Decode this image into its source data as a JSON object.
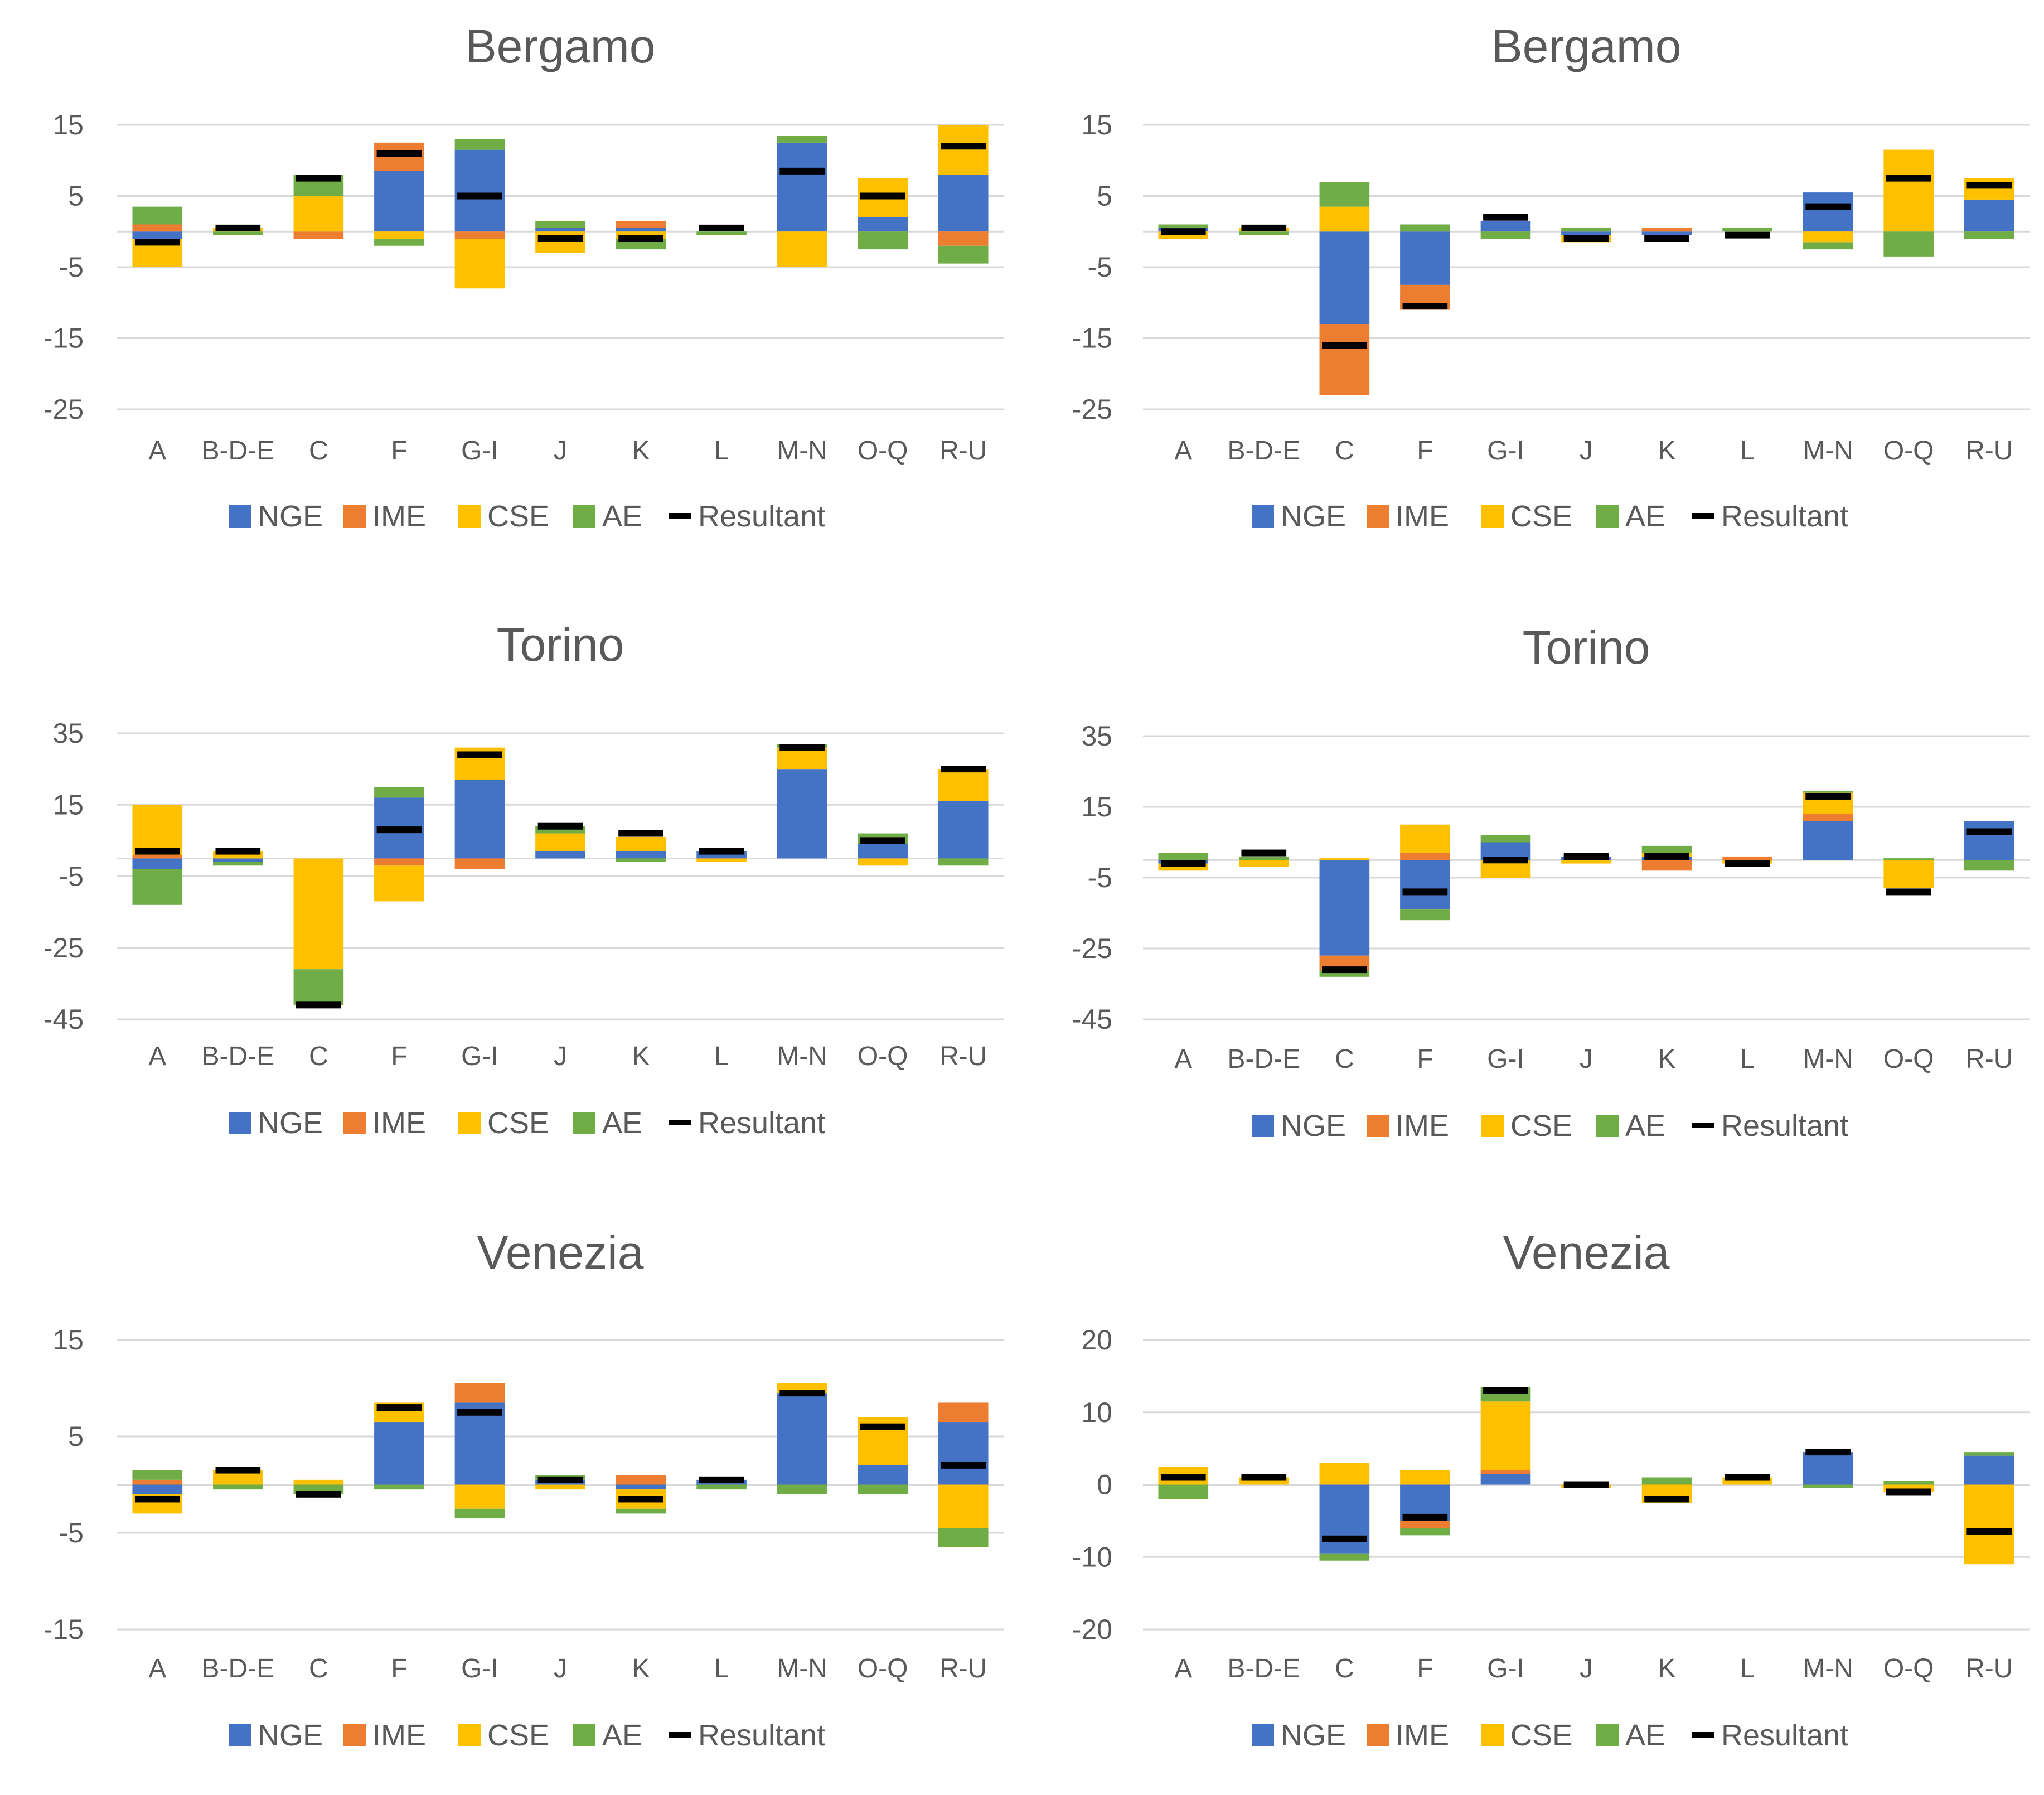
{
  "legend_keys": [
    "NGE",
    "IME",
    "CSE",
    "AE"
  ],
  "resultant_label": "Resultant",
  "colors": {
    "NGE": "#4472C4",
    "IME": "#ED7D31",
    "CSE": "#FFC000",
    "AE": "#70AD47",
    "Resultant": "#000000",
    "grid": "#D9D9D9",
    "text": "#595959"
  },
  "chart_data": [
    {
      "id": "bergamo-left",
      "type": "bar",
      "stacked": true,
      "title": "Bergamo",
      "ylim": [
        -25,
        15
      ],
      "yticks": [
        15,
        5,
        -5,
        -15,
        -25
      ],
      "grid": true,
      "legend": "bottom",
      "categories": [
        "A",
        "B-D-E",
        "C",
        "F",
        "G-I",
        "J",
        "K",
        "L",
        "M-N",
        "O-Q",
        "R-U"
      ],
      "series": [
        {
          "name": "NGE",
          "values": [
            -1,
            0,
            0,
            8.5,
            11.5,
            0.5,
            0.5,
            0,
            12.5,
            2,
            8
          ]
        },
        {
          "name": "IME",
          "values": [
            1,
            0,
            -1,
            4,
            -1,
            0,
            1,
            0,
            0,
            0,
            -2
          ]
        },
        {
          "name": "CSE",
          "values": [
            -4,
            0.5,
            5,
            -1,
            -7,
            -3,
            -1,
            0,
            -5,
            5.5,
            7
          ]
        },
        {
          "name": "AE",
          "values": [
            2.5,
            -0.5,
            3,
            -1,
            1.5,
            1,
            -1.5,
            -0.5,
            1,
            -2.5,
            -2.5
          ]
        }
      ],
      "resultant": [
        -1.5,
        0.5,
        7.5,
        11,
        5,
        -1,
        -1,
        0.5,
        8.5,
        5,
        12
      ]
    },
    {
      "id": "bergamo-right",
      "type": "bar",
      "stacked": true,
      "title": "Bergamo",
      "ylim": [
        -25,
        15
      ],
      "yticks": [
        15,
        5,
        -5,
        -15,
        -25
      ],
      "grid": true,
      "legend": "bottom",
      "categories": [
        "A",
        "B-D-E",
        "C",
        "F",
        "G-I",
        "J",
        "K",
        "L",
        "M-N",
        "O-Q",
        "R-U"
      ],
      "series": [
        {
          "name": "NGE",
          "values": [
            0.5,
            0,
            -13,
            -7.5,
            1.5,
            -0.5,
            -0.5,
            0,
            5.5,
            0,
            4.5
          ]
        },
        {
          "name": "IME",
          "values": [
            0,
            0,
            -10,
            -3.5,
            0,
            0,
            0.5,
            0,
            0,
            0,
            0
          ]
        },
        {
          "name": "CSE",
          "values": [
            -1,
            0.5,
            3.5,
            0,
            0,
            -1,
            0,
            0,
            -1.5,
            11.5,
            3
          ]
        },
        {
          "name": "AE",
          "values": [
            0.5,
            -0.5,
            3.5,
            1,
            -1,
            0.5,
            0,
            0.5,
            -1,
            -3.5,
            -1
          ]
        }
      ],
      "resultant": [
        0,
        0.5,
        -16,
        -10.5,
        2,
        -1,
        -1,
        -0.5,
        3.5,
        7.5,
        6.5
      ]
    },
    {
      "id": "torino-left",
      "type": "bar",
      "stacked": true,
      "title": "Torino",
      "ylim": [
        -45,
        35
      ],
      "yticks": [
        35,
        15,
        -5,
        -25,
        -45
      ],
      "grid": true,
      "legend": "bottom",
      "categories": [
        "A",
        "B-D-E",
        "C",
        "F",
        "G-I",
        "J",
        "K",
        "L",
        "M-N",
        "O-Q",
        "R-U"
      ],
      "series": [
        {
          "name": "NGE",
          "values": [
            -3,
            -1,
            0,
            17,
            22,
            2,
            2,
            2,
            25,
            4,
            16
          ]
        },
        {
          "name": "IME",
          "values": [
            1,
            0,
            0,
            -2,
            -3,
            0,
            0,
            0,
            0,
            0,
            0
          ]
        },
        {
          "name": "CSE",
          "values": [
            14,
            2,
            -31,
            -10,
            9,
            5,
            4,
            -1,
            6,
            -2,
            9
          ]
        },
        {
          "name": "AE",
          "values": [
            -10,
            -1,
            -10,
            3,
            0,
            2,
            -1,
            0,
            1,
            3,
            -2
          ]
        }
      ],
      "resultant": [
        2,
        2,
        -41,
        8,
        29,
        9,
        7,
        2,
        31,
        5,
        25
      ]
    },
    {
      "id": "torino-right",
      "type": "bar",
      "stacked": true,
      "title": "Torino",
      "ylim": [
        -45,
        35
      ],
      "yticks": [
        35,
        15,
        -5,
        -25,
        -45
      ],
      "grid": true,
      "legend": "bottom",
      "categories": [
        "A",
        "B-D-E",
        "C",
        "F",
        "G-I",
        "J",
        "K",
        "L",
        "M-N",
        "O-Q",
        "R-U"
      ],
      "series": [
        {
          "name": "NGE",
          "values": [
            -1,
            0,
            -27,
            -14,
            5,
            1,
            1,
            0,
            11,
            0,
            11
          ]
        },
        {
          "name": "IME",
          "values": [
            0,
            0,
            -4,
            2,
            0,
            0,
            -3,
            1,
            2,
            0,
            0
          ]
        },
        {
          "name": "CSE",
          "values": [
            -2,
            -2,
            0.5,
            8,
            -5,
            -1,
            1,
            -1,
            6,
            -8,
            0
          ]
        },
        {
          "name": "AE",
          "values": [
            2,
            1,
            -2,
            -3,
            2,
            0,
            2,
            0,
            0.5,
            0.5,
            -3
          ]
        }
      ],
      "resultant": [
        -1,
        2,
        -31,
        -9,
        0,
        1,
        1,
        -1,
        18,
        -9,
        8
      ]
    },
    {
      "id": "venezia-left",
      "type": "bar",
      "stacked": true,
      "title": "Venezia",
      "ylim": [
        -15,
        15
      ],
      "yticks": [
        15,
        5,
        -5,
        -15
      ],
      "grid": true,
      "legend": "bottom",
      "categories": [
        "A",
        "B-D-E",
        "C",
        "F",
        "G-I",
        "J",
        "K",
        "L",
        "M-N",
        "O-Q",
        "R-U"
      ],
      "series": [
        {
          "name": "NGE",
          "values": [
            -1,
            0,
            0,
            6.5,
            8.5,
            0.5,
            -0.5,
            0.5,
            9.5,
            2,
            6.5
          ]
        },
        {
          "name": "IME",
          "values": [
            0.5,
            0,
            0,
            0,
            2,
            0,
            1,
            0,
            0,
            0,
            2
          ]
        },
        {
          "name": "CSE",
          "values": [
            -2,
            1.5,
            0.5,
            2,
            -2.5,
            -0.5,
            -2,
            0,
            1,
            5,
            -4.5
          ]
        },
        {
          "name": "AE",
          "values": [
            1,
            -0.5,
            -1,
            -0.5,
            -1,
            0.5,
            -0.5,
            -0.5,
            -1,
            -1,
            -2
          ]
        }
      ],
      "resultant": [
        -1.5,
        1.5,
        -1,
        8,
        7.5,
        0.5,
        -1.5,
        0.5,
        9.5,
        6,
        2
      ]
    },
    {
      "id": "venezia-right",
      "type": "bar",
      "stacked": true,
      "title": "Venezia",
      "ylim": [
        -20,
        20
      ],
      "yticks": [
        20,
        10,
        0,
        -10,
        -20
      ],
      "grid": true,
      "legend": "bottom",
      "categories": [
        "A",
        "B-D-E",
        "C",
        "F",
        "G-I",
        "J",
        "K",
        "L",
        "M-N",
        "O-Q",
        "R-U"
      ],
      "series": [
        {
          "name": "NGE",
          "values": [
            0,
            0,
            -9.5,
            -5,
            1.5,
            0,
            0,
            0,
            4.5,
            0,
            4
          ]
        },
        {
          "name": "IME",
          "values": [
            0,
            0,
            0,
            -1,
            0.5,
            0,
            0,
            0,
            0,
            0,
            0
          ]
        },
        {
          "name": "CSE",
          "values": [
            2.5,
            1,
            3,
            2,
            9.5,
            -0.5,
            -2.5,
            1,
            0,
            -1,
            -11
          ]
        },
        {
          "name": "AE",
          "values": [
            -2,
            0,
            -1,
            -1,
            2,
            0,
            1,
            0,
            -0.5,
            0.5,
            0.5
          ]
        }
      ],
      "resultant": [
        1,
        1,
        -7.5,
        -4.5,
        13,
        0,
        -2,
        1,
        4.5,
        -1,
        -6.5
      ]
    }
  ]
}
